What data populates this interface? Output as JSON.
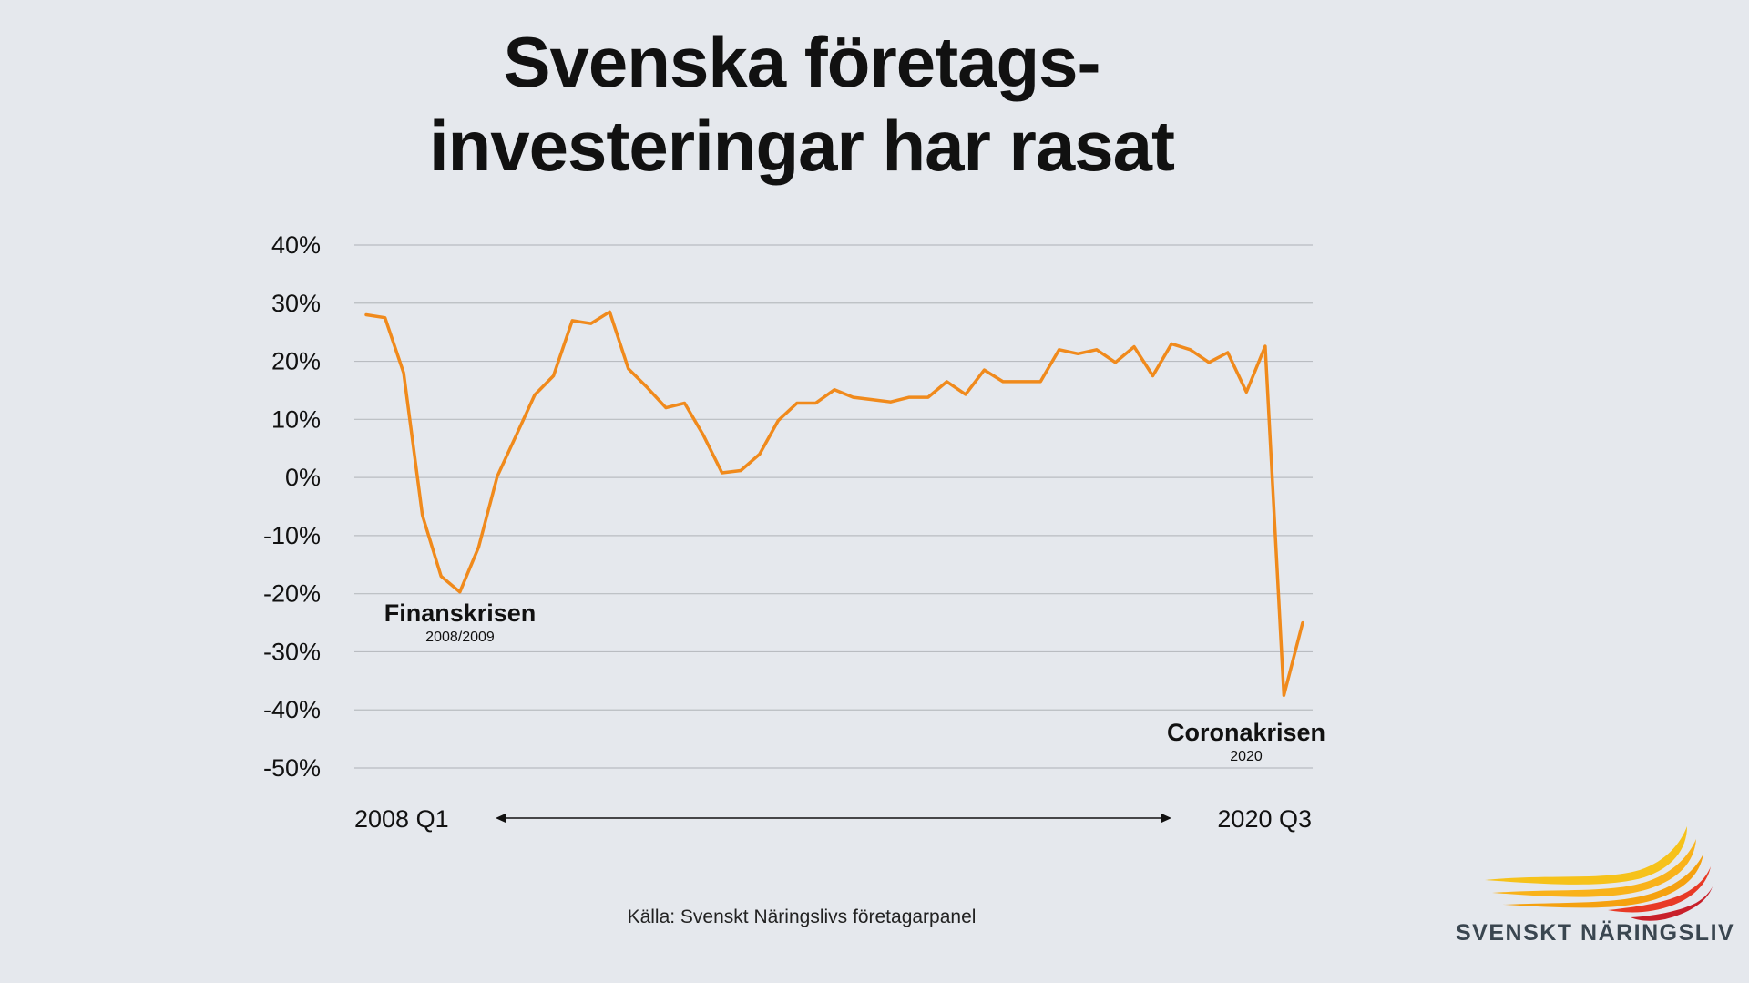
{
  "title": {
    "line1": "Svenska företags-",
    "line2": "investeringar har rasat"
  },
  "source": "Källa: Svenskt Näringslivs företagarpanel",
  "logo": {
    "text": "SVENSKT NÄRINGSLIV"
  },
  "colors": {
    "background": "#e5e8ed",
    "line": "#f08a1c",
    "grid": "#b9bcc1"
  },
  "chart_data": {
    "type": "line",
    "title": "Svenska företagsinvesteringar har rasat",
    "xlabel": "",
    "ylabel": "",
    "ylim": [
      -50,
      40
    ],
    "yticks": [
      "40%",
      "30%",
      "20%",
      "10%",
      "0%",
      "-10%",
      "-20%",
      "-30%",
      "-40%",
      "-50%"
    ],
    "x_start_label": "2008 Q1",
    "x_end_label": "2020 Q3",
    "grid": true,
    "series": [
      {
        "values": [
          28,
          27.5,
          18,
          -6.5,
          -17,
          -19.7,
          -12,
          0.2,
          7.2,
          14.2,
          17.5,
          27,
          26.5,
          28.5,
          18.7,
          15.5,
          12,
          12.8,
          7.3,
          0.8,
          1.2,
          4,
          9.8,
          12.8,
          12.8,
          15.1,
          13.8,
          13.4,
          13,
          13.8,
          13.8,
          16.5,
          14.3,
          18.5,
          16.5,
          16.5,
          16.5,
          22,
          21.3,
          22,
          19.8,
          22.5,
          17.5,
          23,
          22,
          19.8,
          21.5,
          14.7,
          22.6,
          -37.5,
          -25
        ]
      }
    ],
    "annotations": [
      {
        "title": "Finanskrisen",
        "subtitle": "2008/2009"
      },
      {
        "title": "Coronakrisen",
        "subtitle": "2020"
      }
    ]
  }
}
